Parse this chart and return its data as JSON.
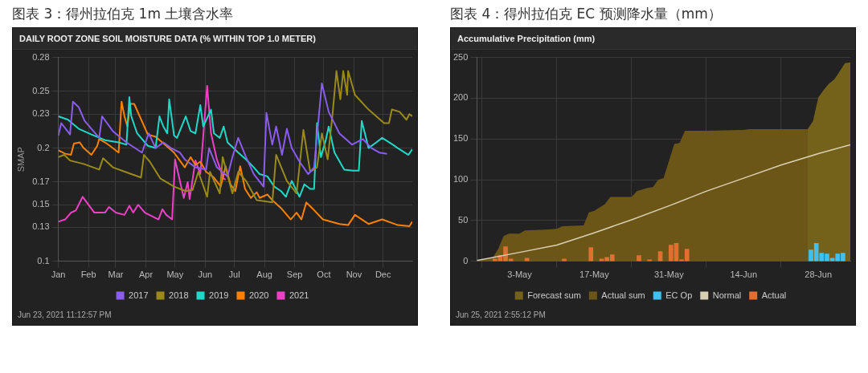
{
  "chart_data": [
    {
      "type": "line",
      "title": "图表 3：得州拉伯克 1m 土壤含水率",
      "subtitle": "DAILY ROOT ZONE SOIL MOISTURE DATA (% WITHIN TOP 1.0 METER)",
      "ylabel": "SMAP",
      "annotations": [
        "Jun 23, 2021 11:12:57 PM"
      ],
      "xlim": [
        "--01-01",
        "--12-31"
      ],
      "xticks": [
        {
          "value": "--01-01",
          "label": "Jan"
        },
        {
          "value": "--02-01",
          "label": "Feb"
        },
        {
          "value": "--03-01",
          "label": "Mar"
        },
        {
          "value": "--04-01",
          "label": "Apr"
        },
        {
          "value": "--05-01",
          "label": "May"
        },
        {
          "value": "--06-01",
          "label": "Jun"
        },
        {
          "value": "--07-01",
          "label": "Jul"
        },
        {
          "value": "--08-01",
          "label": "Aug"
        },
        {
          "value": "--09-01",
          "label": "Sep"
        },
        {
          "value": "--10-01",
          "label": "Oct"
        },
        {
          "value": "--11-01",
          "label": "Nov"
        },
        {
          "value": "--12-01",
          "label": "Dec"
        }
      ],
      "ylim": [
        0.1,
        0.28
      ],
      "yticks": [
        0.1,
        0.13,
        0.15,
        0.17,
        0.2,
        0.23,
        0.25,
        0.28
      ],
      "grid": true,
      "legend": "bottom",
      "marker": "none",
      "line_style": "solid",
      "series": [
        {
          "name": "2017",
          "color": "#8a5cf0",
          "x": [
            "--01-01",
            "--01-04",
            "--01-13",
            "--01-16",
            "--01-22",
            "--01-28",
            "--02-12",
            "--02-15",
            "--02-26",
            "--03-12",
            "--03-28",
            "--04-04",
            "--04-11",
            "--04-19",
            "--04-27",
            "--05-06",
            "--05-11",
            "--05-22",
            "--06-02",
            "--06-05",
            "--06-13",
            "--06-24",
            "--06-29",
            "--07-05",
            "--07-13",
            "--07-21",
            "--07-31",
            "--08-03",
            "--08-09",
            "--08-13",
            "--08-19",
            "--08-24",
            "--08-29",
            "--09-06",
            "--09-15",
            "--09-21",
            "--09-29",
            "--10-06",
            "--10-17",
            "--10-30",
            "--11-10",
            "--11-19",
            "--11-27",
            "--12-05"
          ],
          "values": [
            0.211,
            0.222,
            0.212,
            0.241,
            0.236,
            0.224,
            0.209,
            0.228,
            0.215,
            0.205,
            0.196,
            0.213,
            0.2,
            0.205,
            0.2,
            0.196,
            0.19,
            0.183,
            0.181,
            0.2,
            0.183,
            0.175,
            0.192,
            0.209,
            0.192,
            0.177,
            0.166,
            0.231,
            0.203,
            0.219,
            0.194,
            0.217,
            0.2,
            0.188,
            0.177,
            0.183,
            0.257,
            0.232,
            0.213,
            0.203,
            0.208,
            0.2,
            0.196,
            0.195
          ]
        },
        {
          "name": "2018",
          "color": "#9a8a1a",
          "x": [
            "--01-01",
            "--01-07",
            "--01-13",
            "--01-27",
            "--02-12",
            "--02-16",
            "--02-26",
            "--03-17",
            "--03-27",
            "--03-30",
            "--04-05",
            "--04-16",
            "--04-30",
            "--05-12",
            "--05-19",
            "--05-25",
            "--06-03",
            "--06-06",
            "--06-16",
            "--06-19",
            "--06-29",
            "--07-05",
            "--07-13",
            "--07-24",
            "--08-09",
            "--08-13",
            "--08-24",
            "--09-03",
            "--09-10",
            "--09-17",
            "--09-24",
            "--09-29",
            "--10-05",
            "--10-10",
            "--10-14",
            "--10-18",
            "--10-21",
            "--10-25",
            "--10-26",
            "--11-02",
            "--11-16",
            "--12-02",
            "--12-07",
            "--12-10",
            "--12-18",
            "--12-25",
            "--12-28",
            "--12-31"
          ],
          "values": [
            0.192,
            0.194,
            0.189,
            0.186,
            0.181,
            0.191,
            0.183,
            0.177,
            0.174,
            0.194,
            0.188,
            0.173,
            0.166,
            0.162,
            0.163,
            0.179,
            0.157,
            0.179,
            0.16,
            0.192,
            0.16,
            0.179,
            0.171,
            0.154,
            0.152,
            0.194,
            0.171,
            0.16,
            0.216,
            0.179,
            0.183,
            0.213,
            0.19,
            0.23,
            0.268,
            0.243,
            0.268,
            0.247,
            0.268,
            0.247,
            0.234,
            0.222,
            0.222,
            0.234,
            0.232,
            0.225,
            0.23,
            0.228
          ]
        },
        {
          "name": "2019",
          "color": "#20d8c8",
          "x": [
            "--01-01",
            "--01-11",
            "--01-15",
            "--01-22",
            "--02-04",
            "--02-18",
            "--03-04",
            "--03-12",
            "--03-15",
            "--03-17",
            "--03-23",
            "--04-03",
            "--04-11",
            "--04-15",
            "--04-19",
            "--04-23",
            "--04-25",
            "--04-30",
            "--05-03",
            "--05-12",
            "--05-17",
            "--05-22",
            "--05-27",
            "--05-30",
            "--06-07",
            "--06-10",
            "--06-16",
            "--06-20",
            "--06-24",
            "--07-05",
            "--07-13",
            "--07-21",
            "--07-27",
            "--08-04",
            "--08-11",
            "--08-18",
            "--08-23",
            "--08-29",
            "--09-06",
            "--09-11",
            "--09-17",
            "--09-21",
            "--09-24",
            "--09-28",
            "--10-03",
            "--10-06",
            "--10-12",
            "--10-22",
            "--10-31",
            "--11-06",
            "--11-09",
            "--11-16",
            "--11-24",
            "--11-30",
            "--12-11",
            "--12-16",
            "--12-27",
            "--12-31"
          ],
          "values": [
            0.228,
            0.225,
            0.222,
            0.217,
            0.212,
            0.207,
            0.205,
            0.203,
            0.245,
            0.228,
            0.213,
            0.202,
            0.2,
            0.228,
            0.219,
            0.213,
            0.243,
            0.211,
            0.209,
            0.228,
            0.215,
            0.213,
            0.238,
            0.219,
            0.234,
            0.213,
            0.209,
            0.219,
            0.205,
            0.196,
            0.19,
            0.183,
            0.177,
            0.175,
            0.166,
            0.162,
            0.157,
            0.171,
            0.157,
            0.168,
            0.164,
            0.164,
            0.222,
            0.192,
            0.207,
            0.219,
            0.196,
            0.181,
            0.18,
            0.18,
            0.224,
            0.2,
            0.205,
            0.209,
            0.203,
            0.2,
            0.194,
            0.199
          ]
        },
        {
          "name": "2020",
          "color": "#ff8000",
          "x": [
            "--01-01",
            "--01-08",
            "--01-14",
            "--01-17",
            "--01-23",
            "--01-27",
            "--02-04",
            "--02-10",
            "--02-12",
            "--02-18",
            "--02-23",
            "--03-04",
            "--03-07",
            "--03-10",
            "--03-13",
            "--03-16",
            "--03-20",
            "--04-03",
            "--04-11",
            "--04-22",
            "--04-30",
            "--05-11",
            "--05-17",
            "--05-22",
            "--05-27",
            "--06-02",
            "--06-10",
            "--06-17",
            "--06-22",
            "--06-27",
            "--07-02",
            "--07-07",
            "--07-12",
            "--07-18",
            "--07-24",
            "--07-27",
            "--08-04",
            "--08-09",
            "--08-18",
            "--08-28",
            "--09-03",
            "--09-08",
            "--09-13",
            "--09-19",
            "--09-30",
            "--10-17",
            "--10-26",
            "--11-02",
            "--11-16",
            "--11-30",
            "--12-16",
            "--12-28",
            "--12-31"
          ],
          "values": [
            0.198,
            0.195,
            0.194,
            0.204,
            0.205,
            0.2,
            0.194,
            0.202,
            0.208,
            0.205,
            0.202,
            0.196,
            0.241,
            0.228,
            0.219,
            0.239,
            0.239,
            0.212,
            0.21,
            0.202,
            0.196,
            0.183,
            0.192,
            0.185,
            0.188,
            0.179,
            0.174,
            0.166,
            0.184,
            0.168,
            0.162,
            0.184,
            0.164,
            0.156,
            0.161,
            0.156,
            0.159,
            0.154,
            0.147,
            0.137,
            0.143,
            0.137,
            0.152,
            0.147,
            0.137,
            0.133,
            0.132,
            0.141,
            0.133,
            0.137,
            0.132,
            0.131,
            0.135
          ]
        },
        {
          "name": "2021",
          "color": "#f040c8",
          "x": [
            "--01-01",
            "--01-08",
            "--01-14",
            "--01-19",
            "--01-26",
            "--02-07",
            "--02-18",
            "--02-22",
            "--03-01",
            "--03-10",
            "--03-15",
            "--03-19",
            "--03-24",
            "--03-31",
            "--04-14",
            "--04-18",
            "--04-22",
            "--04-28",
            "--05-01",
            "--05-06",
            "--05-10",
            "--05-14",
            "--05-16",
            "--05-22",
            "--05-27",
            "--06-03",
            "--06-07",
            "--06-13",
            "--06-20",
            "--06-22"
          ],
          "values": [
            0.135,
            0.137,
            0.143,
            0.145,
            0.157,
            0.143,
            0.143,
            0.148,
            0.143,
            0.141,
            0.149,
            0.143,
            0.15,
            0.143,
            0.137,
            0.146,
            0.141,
            0.137,
            0.19,
            0.171,
            0.156,
            0.17,
            0.155,
            0.189,
            0.177,
            0.255,
            0.213,
            0.19,
            0.173,
            0.172
          ]
        }
      ]
    },
    {
      "type": "area",
      "title": "图表 4：得州拉伯克 EC 预测降水量（mm）",
      "subtitle": "Accumulative Precipitation (mm)",
      "annotations": [
        "Jun 25, 2021 2:55:12 PM"
      ],
      "xlim": [
        "--04-25",
        "--07-04"
      ],
      "xticks": [
        {
          "value": "--05-03",
          "label": "3-May"
        },
        {
          "value": "--05-17",
          "label": "17-May"
        },
        {
          "value": "--05-31",
          "label": "31-May"
        },
        {
          "value": "--06-14",
          "label": "14-Jun"
        },
        {
          "value": "--06-28",
          "label": "28-Jun"
        }
      ],
      "ylim": [
        0,
        250
      ],
      "yticks": [
        0,
        50,
        100,
        150,
        200,
        250
      ],
      "grid": true,
      "legend": "bottom",
      "series": [
        {
          "name": "Forecast sum",
          "type": "area",
          "color": "#75621a",
          "x": [
            "--06-26",
            "--06-27",
            "--06-28",
            "--06-29",
            "--06-30",
            "--07-01",
            "--07-02",
            "--07-03",
            "--07-04"
          ],
          "values": [
            162,
            172,
            201,
            210,
            218,
            223,
            233,
            243,
            244
          ]
        },
        {
          "name": "Actual sum",
          "type": "area",
          "color": "#6b5618",
          "x": [
            "--04-25",
            "--04-28",
            "--04-29",
            "--04-30",
            "--05-01",
            "--05-03",
            "--05-04",
            "--05-08",
            "--05-10",
            "--05-11",
            "--05-15",
            "--05-16",
            "--05-17",
            "--05-19",
            "--05-20",
            "--05-24",
            "--05-25",
            "--05-27",
            "--05-28",
            "--05-29",
            "--05-30",
            "--06-01",
            "--06-02",
            "--06-03",
            "--06-07",
            "--06-14",
            "--06-15",
            "--06-26",
            "--07-04"
          ],
          "values": [
            0,
            5,
            15,
            31,
            34,
            34,
            38,
            39,
            40,
            43,
            44,
            60,
            62,
            70,
            79,
            79,
            86,
            90,
            91,
            100,
            102,
            144,
            145,
            160,
            160,
            161,
            162,
            162,
            162
          ]
        },
        {
          "name": "EC Op",
          "type": "bar",
          "color": "#40c0f0",
          "x": [
            "--06-27",
            "--06-28",
            "--06-29",
            "--06-30",
            "--07-01",
            "--07-02",
            "--07-03"
          ],
          "values": [
            14,
            22,
            10,
            9,
            4,
            9,
            10
          ]
        },
        {
          "name": "Normal",
          "type": "line",
          "color": "#d8d0b0",
          "x": [
            "--04-25",
            "--05-03",
            "--05-10",
            "--05-17",
            "--05-24",
            "--05-31",
            "--06-07",
            "--06-14",
            "--06-21",
            "--06-28",
            "--07-04"
          ],
          "values": [
            1,
            11,
            20,
            35,
            51,
            68,
            86,
            102,
            118,
            132,
            143
          ]
        },
        {
          "name": "Actual",
          "type": "bar",
          "color": "#e07030",
          "x": [
            "--04-28",
            "--04-29",
            "--04-30",
            "--05-01",
            "--05-04",
            "--05-11",
            "--05-16",
            "--05-18",
            "--05-19",
            "--05-20",
            "--05-25",
            "--05-27",
            "--05-29",
            "--05-31",
            "--06-01",
            "--06-02",
            "--06-03"
          ],
          "values": [
            3,
            7,
            18,
            3,
            4,
            3,
            17,
            3,
            5,
            8,
            7,
            2,
            12,
            20,
            22,
            2,
            15
          ]
        }
      ]
    }
  ]
}
